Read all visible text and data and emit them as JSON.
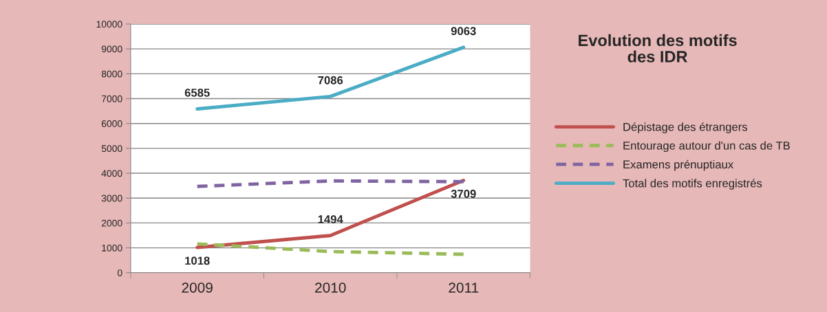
{
  "chart_data": {
    "type": "line",
    "title": "Evolution des motifs\ndes IDR",
    "categories": [
      "2009",
      "2010",
      "2011"
    ],
    "series": [
      {
        "name": "Dépistage des étrangers",
        "color": "#c0504d",
        "line_style": "solid",
        "values": [
          1018,
          1494,
          3709
        ],
        "value_labels": [
          "1018",
          "1494",
          "3709"
        ]
      },
      {
        "name": "Entourage autour d'un cas de TB",
        "color": "#9bbb59",
        "line_style": "dashed",
        "values": [
          1160,
          850,
          740
        ]
      },
      {
        "name": "Examens prénuptiaux",
        "color": "#8064a2",
        "line_style": "dashed",
        "values": [
          3470,
          3690,
          3660
        ]
      },
      {
        "name": "Total des motifs enregistrés",
        "color": "#4bacc6",
        "line_style": "solid",
        "values": [
          6585,
          7086,
          9063
        ],
        "value_labels": [
          "6585",
          "7086",
          "9063"
        ]
      }
    ],
    "ylim": [
      0,
      10000
    ],
    "yticks": [
      0,
      1000,
      2000,
      3000,
      4000,
      5000,
      6000,
      7000,
      8000,
      9000,
      10000
    ],
    "grid": "y",
    "legend": "right",
    "marker": "none"
  }
}
